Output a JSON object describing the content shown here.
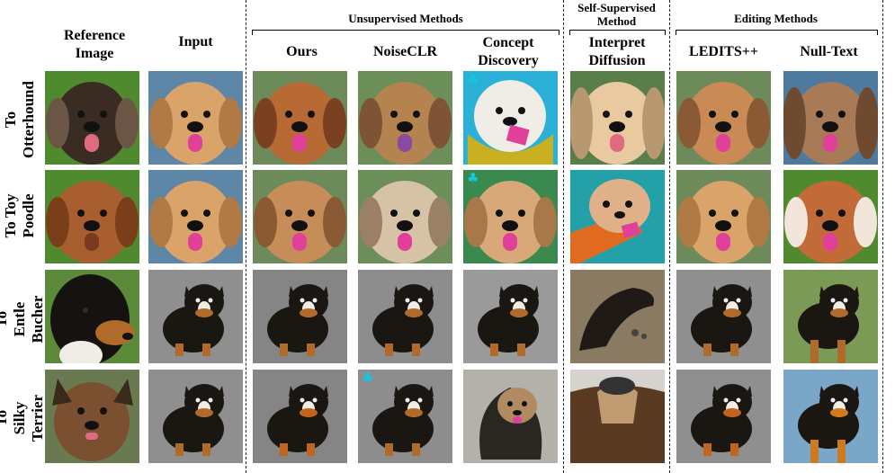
{
  "groups": {
    "unsupervised": "Unsupervised Methods",
    "self_supervised": "Self-Supervised\nMethod",
    "editing": "Editing Methods"
  },
  "columns": {
    "reference": "Reference\nImage",
    "input": "Input",
    "ours": "Ours",
    "noiseclr": "NoiseCLR",
    "concept": "Concept\nDiscovery",
    "interpret": "Interpret\nDiffusion",
    "ledits": "LEDITS++",
    "nulltext": "Null-Text"
  },
  "rows": [
    {
      "label": "To\nOtterhound"
    },
    {
      "label": "To Toy\nPoodle"
    },
    {
      "label": "To Entle\nBucher"
    },
    {
      "label": "To Silky\nTerrier"
    }
  ],
  "marker": {
    "symbol": "♣",
    "color": "#11c8e0"
  },
  "palette": {
    "golden_fur": "#d9a36a",
    "dark_fur": "#1a1612",
    "tan_fur": "#b06a2a",
    "tongue": "#e0409a",
    "grass": "#4f8a2e",
    "pavement": "#8f8f8f"
  }
}
